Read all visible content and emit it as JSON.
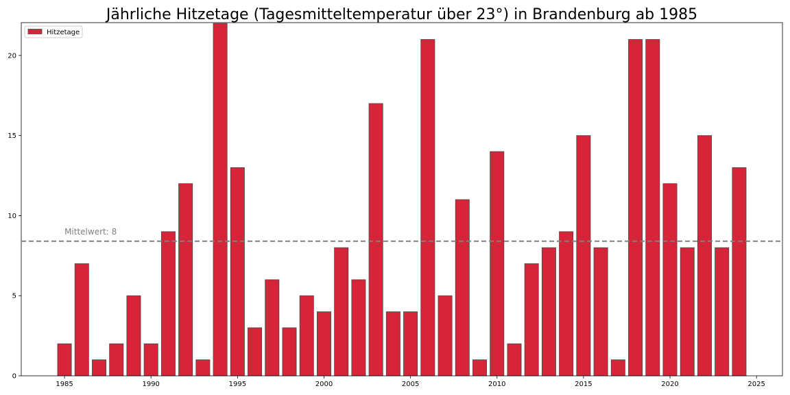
{
  "chart_data": {
    "type": "bar",
    "title": "Jährliche Hitzetage (Tagesmitteltemperatur über 23°) in Brandenburg ab 1985",
    "xlabel": "",
    "ylabel": "",
    "xlim": [
      1982.5,
      2026.5
    ],
    "ylim": [
      0,
      22.05
    ],
    "x_ticks": [
      1985,
      1990,
      1995,
      2000,
      2005,
      2010,
      2015,
      2020,
      2025
    ],
    "y_ticks": [
      0,
      5,
      10,
      15,
      20
    ],
    "grid": false,
    "legend": {
      "placement": "top-left",
      "entries": [
        "Hitzetage"
      ]
    },
    "series": [
      {
        "name": "Hitzetage",
        "color": "#d62538",
        "edge_color": "#4a4a4a",
        "x": [
          1985,
          1986,
          1987,
          1988,
          1989,
          1990,
          1991,
          1992,
          1993,
          1994,
          1995,
          1996,
          1997,
          1998,
          1999,
          2000,
          2001,
          2002,
          2003,
          2004,
          2005,
          2006,
          2007,
          2008,
          2009,
          2010,
          2011,
          2012,
          2013,
          2014,
          2015,
          2016,
          2017,
          2018,
          2019,
          2020,
          2021,
          2022,
          2023,
          2024
        ],
        "values": [
          2,
          7,
          1,
          2,
          5,
          2,
          9,
          12,
          1,
          22,
          13,
          3,
          6,
          3,
          5,
          4,
          8,
          6,
          17,
          4,
          4,
          21,
          5,
          11,
          1,
          14,
          2,
          7,
          8,
          9,
          15,
          8,
          1,
          21,
          21,
          12,
          8,
          15,
          8,
          13
        ]
      }
    ],
    "mean_line": {
      "value": 8.4,
      "label": "Mittelwert: 8",
      "color": "#808080",
      "style": "dashed"
    }
  }
}
